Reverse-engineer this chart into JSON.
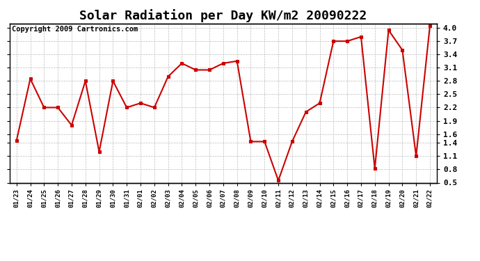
{
  "title": "Solar Radiation per Day KW/m2 20090222",
  "copyright": "Copyright 2009 Cartronics.com",
  "dates": [
    "01/23",
    "01/24",
    "01/25",
    "01/26",
    "01/27",
    "01/28",
    "01/29",
    "01/30",
    "01/31",
    "02/01",
    "02/02",
    "02/03",
    "02/04",
    "02/05",
    "02/06",
    "02/07",
    "02/08",
    "02/09",
    "02/10",
    "02/11",
    "02/12",
    "02/13",
    "02/14",
    "02/15",
    "02/16",
    "02/17",
    "02/18",
    "02/19",
    "02/20",
    "02/21",
    "02/22"
  ],
  "values": [
    1.45,
    2.85,
    2.2,
    2.2,
    1.8,
    2.8,
    1.2,
    2.8,
    2.2,
    2.3,
    2.2,
    2.9,
    3.2,
    3.05,
    3.05,
    3.2,
    3.25,
    1.43,
    1.43,
    0.55,
    1.43,
    2.1,
    2.3,
    3.7,
    3.7,
    3.8,
    0.82,
    3.95,
    3.5,
    1.1,
    4.05
  ],
  "line_color": "#cc0000",
  "marker_color": "#cc0000",
  "bg_color": "#ffffff",
  "grid_color": "#bbbbbb",
  "ylim": [
    0.5,
    4.1
  ],
  "yticks": [
    0.5,
    0.8,
    1.1,
    1.4,
    1.6,
    1.9,
    2.2,
    2.5,
    2.8,
    3.1,
    3.4,
    3.7,
    4.0
  ],
  "title_fontsize": 13,
  "copyright_fontsize": 7.5
}
